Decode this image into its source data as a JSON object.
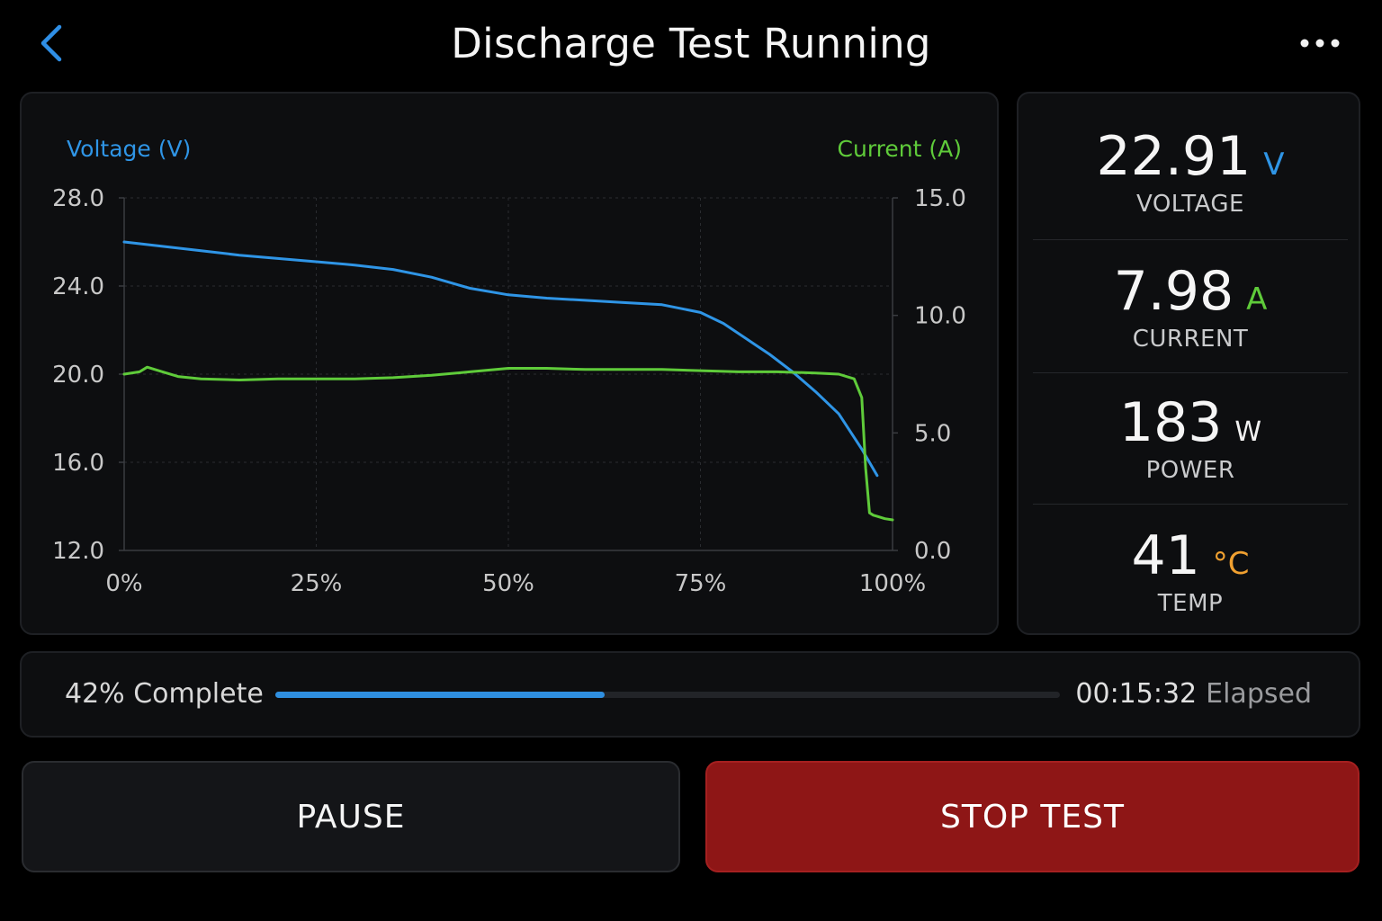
{
  "header": {
    "title": "Discharge Test Running",
    "back_icon": "chevron-left-icon",
    "more_icon": "more-horizontal-icon"
  },
  "colors": {
    "voltage": "#2f95e6",
    "current": "#5fcb3a",
    "temp": "#f0a030",
    "stop": "#8e1616"
  },
  "chart_data": {
    "type": "line",
    "xlabel": "",
    "left_axis_label": "Voltage (V)",
    "right_axis_label": "Current (A)",
    "x_ticks": [
      "0%",
      "25%",
      "50%",
      "75%",
      "100%"
    ],
    "y_left_ticks": [
      "28.0",
      "24.0",
      "20.0",
      "16.0",
      "12.0"
    ],
    "y_right_ticks": [
      "15.0",
      "10.0",
      "5.0",
      "0.0"
    ],
    "y_left_lim": [
      12,
      28
    ],
    "y_right_lim": [
      0,
      15
    ],
    "x_lim": [
      0,
      100
    ],
    "grid": true,
    "series": [
      {
        "name": "Voltage (V)",
        "axis": "left",
        "x": [
          0,
          5,
          10,
          15,
          20,
          25,
          30,
          35,
          40,
          45,
          50,
          55,
          60,
          65,
          70,
          75,
          78,
          81,
          84,
          87,
          90,
          93,
          96,
          98
        ],
        "y": [
          26.0,
          25.8,
          25.6,
          25.4,
          25.25,
          25.1,
          24.95,
          24.75,
          24.4,
          23.9,
          23.6,
          23.45,
          23.35,
          23.25,
          23.15,
          22.8,
          22.3,
          21.6,
          20.9,
          20.1,
          19.2,
          18.2,
          16.6,
          15.4
        ]
      },
      {
        "name": "Current (A)",
        "axis": "right",
        "x": [
          0,
          2,
          3,
          5,
          7,
          10,
          15,
          20,
          25,
          30,
          35,
          40,
          45,
          50,
          55,
          60,
          65,
          70,
          75,
          80,
          85,
          90,
          93,
          95,
          96,
          96.5,
          97,
          97.5,
          98,
          99,
          100
        ],
        "y": [
          7.5,
          7.6,
          7.8,
          7.6,
          7.4,
          7.3,
          7.25,
          7.3,
          7.3,
          7.3,
          7.35,
          7.45,
          7.6,
          7.75,
          7.75,
          7.7,
          7.7,
          7.7,
          7.65,
          7.6,
          7.6,
          7.55,
          7.5,
          7.3,
          6.5,
          3.5,
          1.6,
          1.5,
          1.45,
          1.35,
          1.3
        ]
      }
    ]
  },
  "stats": [
    {
      "value": "22.91",
      "unit": "V",
      "label": "VOLTAGE"
    },
    {
      "value": "7.98",
      "unit": "A",
      "label": "CURRENT"
    },
    {
      "value": "183",
      "unit": "W",
      "label": "POWER"
    },
    {
      "value": "41",
      "unit": "°C",
      "label": "TEMP"
    }
  ],
  "progress": {
    "label": "42% Complete",
    "fraction": 0.42,
    "time": "00:15:32",
    "elapsed_label": "Elapsed"
  },
  "buttons": {
    "pause_label": "PAUSE",
    "stop_label": "STOP TEST"
  }
}
